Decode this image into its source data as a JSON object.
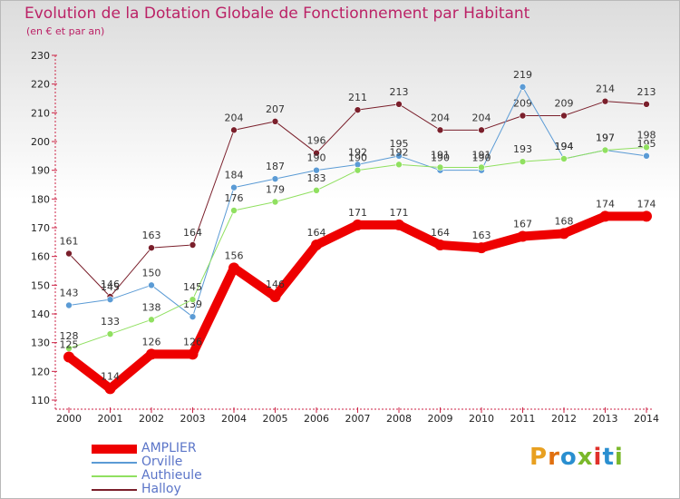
{
  "title": "Evolution de la Dotation Globale de Fonctionnement par Habitant",
  "subtitle": "(en € et par an)",
  "logo": {
    "text": "Proxiti",
    "colors": [
      "#e8a020",
      "#e07010",
      "#2a8fd0",
      "#7ab82a",
      "#e0302a",
      "#2a8fd0",
      "#7ab82a"
    ]
  },
  "chart_data": {
    "type": "line",
    "x": [
      "2000",
      "2001",
      "2002",
      "2003",
      "2004",
      "2005",
      "2006",
      "2007",
      "2008",
      "2009",
      "2010",
      "2011",
      "2012",
      "2013",
      "2014"
    ],
    "ylim": [
      110,
      230
    ],
    "yticks": [
      110,
      120,
      130,
      140,
      150,
      160,
      170,
      180,
      190,
      200,
      210,
      220,
      230
    ],
    "grid": false,
    "legend_position": "bottom-left",
    "series": [
      {
        "name": "Halloy",
        "color": "#7a1f2b",
        "width": 1,
        "values": [
          161,
          146,
          163,
          164,
          204,
          207,
          196,
          211,
          213,
          204,
          204,
          209,
          209,
          214,
          213
        ]
      },
      {
        "name": "Orville",
        "color": "#5b9bd5",
        "width": 1,
        "values": [
          143,
          145,
          150,
          139,
          184,
          187,
          190,
          192,
          195,
          190,
          190,
          219,
          194,
          197,
          195
        ]
      },
      {
        "name": "Authieule",
        "color": "#90e060",
        "width": 1,
        "values": [
          128,
          133,
          138,
          145,
          176,
          179,
          183,
          190,
          192,
          191,
          191,
          193,
          194,
          197,
          198
        ]
      },
      {
        "name": "AMPLIER",
        "color": "#ee0000",
        "width": 10,
        "values": [
          125,
          114,
          126,
          126,
          156,
          146,
          164,
          171,
          171,
          164,
          163,
          167,
          168,
          174,
          174
        ]
      }
    ]
  }
}
